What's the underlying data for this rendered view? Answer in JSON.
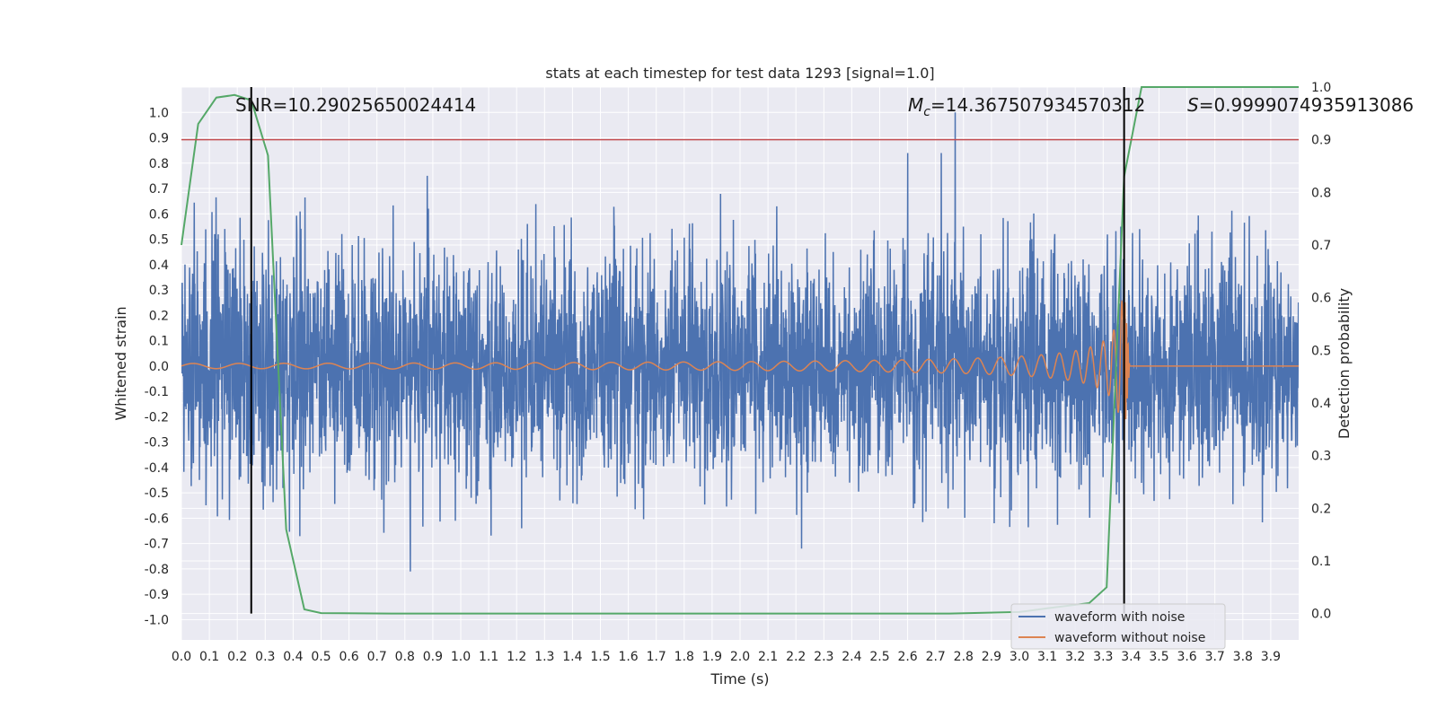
{
  "chart_data": {
    "type": "line",
    "title": "stats at each timestep for test data 1293 [signal=1.0]",
    "xlabel": "Time (s)",
    "ylabel_left": "Whitened strain",
    "ylabel_right": "Detection probability",
    "xlim": [
      0.0,
      4.0
    ],
    "ylim_left": [
      -1.08,
      1.1
    ],
    "ylim_right": [
      -0.05,
      1.0
    ],
    "xticks": [
      "0.0",
      "0.1",
      "0.2",
      "0.3",
      "0.4",
      "0.5",
      "0.6",
      "0.7",
      "0.8",
      "0.9",
      "1.0",
      "1.1",
      "1.2",
      "1.3",
      "1.4",
      "1.5",
      "1.6",
      "1.7",
      "1.8",
      "1.9",
      "2.0",
      "2.1",
      "2.2",
      "2.3",
      "2.4",
      "2.5",
      "2.6",
      "2.7",
      "2.8",
      "2.9",
      "3.0",
      "3.1",
      "3.2",
      "3.3",
      "3.4",
      "3.5",
      "3.6",
      "3.7",
      "3.8",
      "3.9"
    ],
    "yticks_left": [
      "1.0",
      "0.9",
      "0.8",
      "0.7",
      "0.6",
      "0.5",
      "0.4",
      "0.3",
      "0.2",
      "0.1",
      "0.0",
      "-0.1",
      "-0.2",
      "-0.3",
      "-0.4",
      "-0.5",
      "-0.6",
      "-0.7",
      "-0.8",
      "-0.9",
      "-1.0"
    ],
    "yticks_right": [
      "1.0",
      "0.9",
      "0.8",
      "0.7",
      "0.6",
      "0.5",
      "0.4",
      "0.3",
      "0.2",
      "0.1",
      "0.0"
    ],
    "grid": true,
    "annotations": {
      "snr": "SNR=10.29025650024414",
      "mc_symbol": "M",
      "mc_sub": "c",
      "mc_value": "=14.367507934570312",
      "s_symbol": "S",
      "s_value": "=0.9999074935913086"
    },
    "threshold": {
      "value": 0.9,
      "axis": "right",
      "color": "#c44e52"
    },
    "vlines": [
      0.25,
      3.375
    ],
    "series": [
      {
        "name": "waveform with noise",
        "color": "#4c72b0",
        "axis": "left",
        "kind": "noise",
        "seed": 1293,
        "std": 0.22,
        "n_points": 4096,
        "peaks": [
          [
            0.88,
            0.75
          ],
          [
            0.82,
            -0.81
          ],
          [
            2.6,
            0.84
          ],
          [
            2.77,
            1.0
          ],
          [
            2.72,
            0.84
          ],
          [
            2.22,
            -0.72
          ],
          [
            2.91,
            -0.62
          ]
        ]
      },
      {
        "name": "waveform without noise",
        "color": "#dd8452",
        "axis": "left",
        "kind": "chirp",
        "amp_start": 0.01,
        "amp_peak": 0.3,
        "f0": 6.0,
        "f_end": 180.0,
        "t_merge": 3.375
      },
      {
        "name": "detection probability",
        "color": "#55a868",
        "axis": "right",
        "x": [
          0.0,
          0.06,
          0.125,
          0.19,
          0.25,
          0.31,
          0.375,
          0.44,
          0.5,
          0.75,
          1.0,
          1.5,
          2.0,
          2.5,
          2.75,
          3.0,
          3.1,
          3.25,
          3.3125,
          3.375,
          3.4375,
          3.5,
          3.75,
          4.0
        ],
        "values": [
          0.7,
          0.93,
          0.98,
          0.985,
          0.975,
          0.87,
          0.16,
          0.008,
          0.001,
          0.0,
          0.0,
          0.0,
          0.0,
          0.0,
          0.0,
          0.003,
          0.01,
          0.02,
          0.05,
          0.83,
          1.0,
          1.0,
          1.0,
          1.0
        ]
      }
    ],
    "legend": {
      "position": "bottom-right",
      "entries": [
        {
          "label": "waveform with noise",
          "color": "#4c72b0"
        },
        {
          "label": "waveform without noise",
          "color": "#dd8452"
        }
      ]
    }
  }
}
